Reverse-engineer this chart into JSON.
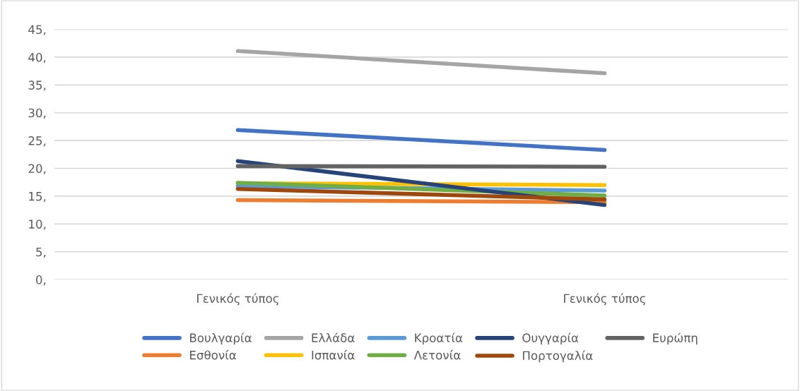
{
  "chart_data": {
    "type": "line",
    "categories": [
      "Γενικός τύπος",
      "Γενικός τύπος"
    ],
    "series": [
      {
        "name": "Βουλγαρία",
        "color": "#4472c4",
        "values": [
          26.9,
          23.3
        ]
      },
      {
        "name": "Εσθονία",
        "color": "#ed7d31",
        "values": [
          14.3,
          13.9
        ]
      },
      {
        "name": "Ελλάδα",
        "color": "#a5a5a5",
        "values": [
          41.1,
          37.1
        ]
      },
      {
        "name": "Ισπανία",
        "color": "#ffc000",
        "values": [
          17.3,
          17.0
        ]
      },
      {
        "name": "Κροατία",
        "color": "#5b9bd5",
        "values": [
          16.8,
          16.0
        ]
      },
      {
        "name": "Λετονία",
        "color": "#70ad47",
        "values": [
          17.4,
          15.1
        ]
      },
      {
        "name": "Ουγγαρία",
        "color": "#264478",
        "values": [
          21.3,
          13.4
        ]
      },
      {
        "name": "Πορτογαλία",
        "color": "#9e480e",
        "values": [
          16.3,
          14.4
        ]
      },
      {
        "name": "Ευρώπη",
        "color": "#636363",
        "values": [
          20.4,
          20.3
        ]
      }
    ],
    "ylim": [
      0,
      45
    ],
    "yticks": [
      {
        "value": 0,
        "label": "0,"
      },
      {
        "value": 5,
        "label": "5,"
      },
      {
        "value": 10,
        "label": "10,"
      },
      {
        "value": 15,
        "label": "15,"
      },
      {
        "value": 20,
        "label": "20,"
      },
      {
        "value": 25,
        "label": "25,"
      },
      {
        "value": 30,
        "label": "30,"
      },
      {
        "value": 35,
        "label": "35,"
      },
      {
        "value": 40,
        "label": "40,"
      },
      {
        "value": 45,
        "label": "45,"
      }
    ],
    "grid": "y",
    "legend": "bottom",
    "marker": "none",
    "line_style": "solid"
  }
}
